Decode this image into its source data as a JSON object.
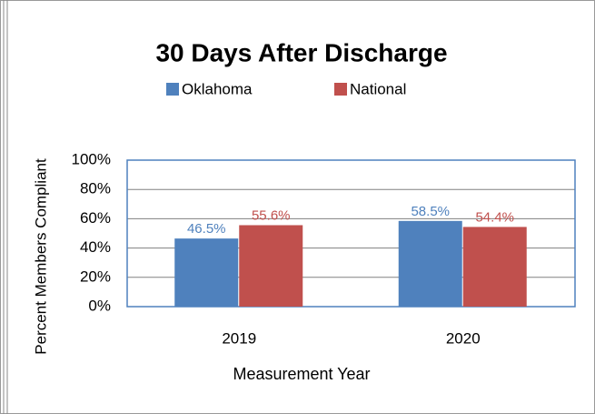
{
  "chart_data": {
    "type": "bar",
    "title": "30 Days After Discharge",
    "x_label": "Measurement Year",
    "y_label": "Percent Members Compliant",
    "categories": [
      "2019",
      "2020"
    ],
    "series": [
      {
        "name": "Oklahoma",
        "color": "#4f81bd",
        "values": [
          46.5,
          58.5
        ],
        "value_labels": [
          "46.5%",
          "58.5%"
        ]
      },
      {
        "name": "National",
        "color": "#c0504d",
        "values": [
          55.6,
          54.4
        ],
        "value_labels": [
          "55.6%",
          "54.4%"
        ]
      }
    ],
    "ylim": [
      0,
      100
    ],
    "yticks": [
      {
        "value": 0,
        "label": "0%"
      },
      {
        "value": 20,
        "label": "20%"
      },
      {
        "value": 40,
        "label": "40%"
      },
      {
        "value": 60,
        "label": "60%"
      },
      {
        "value": 80,
        "label": "80%"
      },
      {
        "value": 100,
        "label": "100%"
      }
    ],
    "grid": true,
    "legend": "top"
  }
}
